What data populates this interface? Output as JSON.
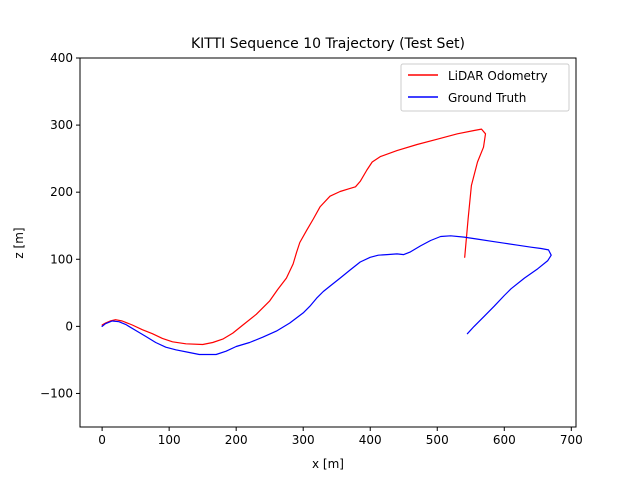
{
  "chart_data": {
    "type": "line",
    "title": "KITTI Sequence 10 Trajectory (Test Set)",
    "xlabel": "x [m]",
    "ylabel": "z [m]",
    "xlim": [
      -33,
      707
    ],
    "ylim": [
      -150,
      400
    ],
    "xticks": [
      0,
      100,
      200,
      300,
      400,
      500,
      600,
      700
    ],
    "yticks": [
      -100,
      0,
      100,
      200,
      300,
      400
    ],
    "ytick_labels": [
      "−100",
      "0",
      "100",
      "200",
      "300",
      "400"
    ],
    "grid": false,
    "legend_position": "top-right",
    "series": [
      {
        "name": "LiDAR Odometry",
        "color": "#ff0000",
        "points": [
          [
            0,
            2
          ],
          [
            5,
            5
          ],
          [
            12,
            8
          ],
          [
            20,
            10
          ],
          [
            30,
            8
          ],
          [
            45,
            2
          ],
          [
            60,
            -5
          ],
          [
            75,
            -11
          ],
          [
            90,
            -18
          ],
          [
            105,
            -23
          ],
          [
            125,
            -26
          ],
          [
            150,
            -27
          ],
          [
            165,
            -24
          ],
          [
            180,
            -19
          ],
          [
            195,
            -10
          ],
          [
            210,
            2
          ],
          [
            230,
            18
          ],
          [
            250,
            38
          ],
          [
            262,
            55
          ],
          [
            275,
            72
          ],
          [
            285,
            93
          ],
          [
            290,
            110
          ],
          [
            295,
            125
          ],
          [
            305,
            143
          ],
          [
            315,
            160
          ],
          [
            325,
            178
          ],
          [
            340,
            194
          ],
          [
            355,
            201
          ],
          [
            368,
            205
          ],
          [
            378,
            208
          ],
          [
            385,
            216
          ],
          [
            395,
            233
          ],
          [
            403,
            245
          ],
          [
            415,
            253
          ],
          [
            440,
            262
          ],
          [
            470,
            271
          ],
          [
            500,
            279
          ],
          [
            530,
            287
          ],
          [
            555,
            292
          ],
          [
            566,
            294
          ],
          [
            572,
            287
          ],
          [
            569,
            267
          ],
          [
            560,
            245
          ],
          [
            551,
            210
          ],
          [
            546,
            160
          ],
          [
            541,
            103
          ]
        ]
      },
      {
        "name": "Ground Truth",
        "color": "#0000ff",
        "points": [
          [
            0,
            0
          ],
          [
            5,
            4
          ],
          [
            15,
            8
          ],
          [
            25,
            7
          ],
          [
            35,
            3
          ],
          [
            50,
            -6
          ],
          [
            65,
            -15
          ],
          [
            80,
            -24
          ],
          [
            95,
            -31
          ],
          [
            110,
            -35
          ],
          [
            130,
            -39
          ],
          [
            145,
            -42
          ],
          [
            170,
            -42
          ],
          [
            185,
            -37
          ],
          [
            200,
            -30
          ],
          [
            220,
            -24
          ],
          [
            240,
            -16
          ],
          [
            260,
            -7
          ],
          [
            280,
            5
          ],
          [
            300,
            20
          ],
          [
            310,
            30
          ],
          [
            320,
            42
          ],
          [
            330,
            52
          ],
          [
            340,
            60
          ],
          [
            355,
            72
          ],
          [
            370,
            84
          ],
          [
            385,
            96
          ],
          [
            400,
            103
          ],
          [
            412,
            106
          ],
          [
            425,
            107
          ],
          [
            440,
            108
          ],
          [
            450,
            107
          ],
          [
            460,
            111
          ],
          [
            475,
            120
          ],
          [
            490,
            128
          ],
          [
            505,
            134
          ],
          [
            520,
            135
          ],
          [
            540,
            133
          ],
          [
            560,
            130
          ],
          [
            580,
            127
          ],
          [
            600,
            124
          ],
          [
            620,
            121
          ],
          [
            640,
            118
          ],
          [
            655,
            116
          ],
          [
            666,
            114
          ],
          [
            670,
            106
          ],
          [
            665,
            98
          ],
          [
            650,
            86
          ],
          [
            630,
            72
          ],
          [
            610,
            56
          ],
          [
            600,
            46
          ],
          [
            585,
            30
          ],
          [
            570,
            15
          ],
          [
            555,
            0
          ],
          [
            545,
            -11
          ]
        ]
      }
    ]
  }
}
